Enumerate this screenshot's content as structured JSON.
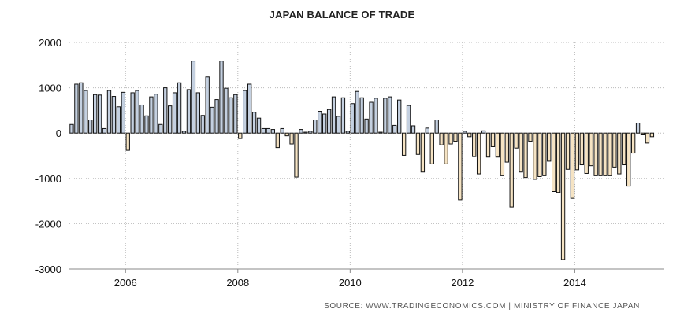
{
  "chart_data": {
    "type": "bar",
    "title": "JAPAN BALANCE OF TRADE",
    "xlabel": "",
    "ylabel": "",
    "ylim": [
      -3000,
      2000
    ],
    "yticks": [
      "2000",
      "1000",
      "0",
      "-1000",
      "-2000",
      "-3000"
    ],
    "ytick_values": [
      2000,
      1000,
      0,
      -1000,
      -2000,
      -3000
    ],
    "xticks": [
      "2006",
      "2008",
      "2010",
      "2012",
      "2014"
    ],
    "xtick_values": [
      2006,
      2008,
      2010,
      2012,
      2014
    ],
    "x_start": "2005-01",
    "x_range": [
      2005,
      2015.58
    ],
    "grid": "dotted",
    "legend": "none",
    "colors": {
      "positive": "#c4d0e0",
      "negative": "#f5e3c3",
      "outline": "#111111",
      "grid": "#bbbbbb",
      "axis": "#888888"
    },
    "values": [
      190,
      1080,
      1110,
      940,
      290,
      850,
      840,
      100,
      940,
      810,
      580,
      900,
      -380,
      890,
      940,
      620,
      380,
      800,
      860,
      190,
      1000,
      600,
      890,
      1110,
      40,
      960,
      1590,
      890,
      390,
      1240,
      570,
      740,
      1590,
      990,
      780,
      850,
      -120,
      940,
      1080,
      460,
      330,
      100,
      100,
      80,
      -320,
      100,
      -60,
      -240,
      -970,
      80,
      20,
      40,
      290,
      480,
      420,
      520,
      800,
      370,
      780,
      40,
      650,
      920,
      780,
      310,
      680,
      770,
      20,
      770,
      800,
      170,
      730,
      -490,
      610,
      160,
      -470,
      -860,
      110,
      -680,
      290,
      -260,
      -680,
      -240,
      -180,
      -1470,
      40,
      -80,
      -520,
      -900,
      50,
      -530,
      -300,
      -530,
      -940,
      -640,
      -1630,
      -330,
      -860,
      -980,
      -180,
      -1020,
      -960,
      -940,
      -620,
      -1290,
      -1310,
      -2790,
      -800,
      -1440,
      -810,
      -700,
      -890,
      -720,
      -940,
      -940,
      -940,
      -940,
      -750,
      -900,
      -700,
      -1170,
      -440,
      220,
      -40,
      -220,
      -80
    ]
  },
  "source": {
    "text": "SOURCE:  WWW.TRADINGECONOMICS.COM  |  MINISTRY  OF  FINANCE  JAPAN"
  }
}
